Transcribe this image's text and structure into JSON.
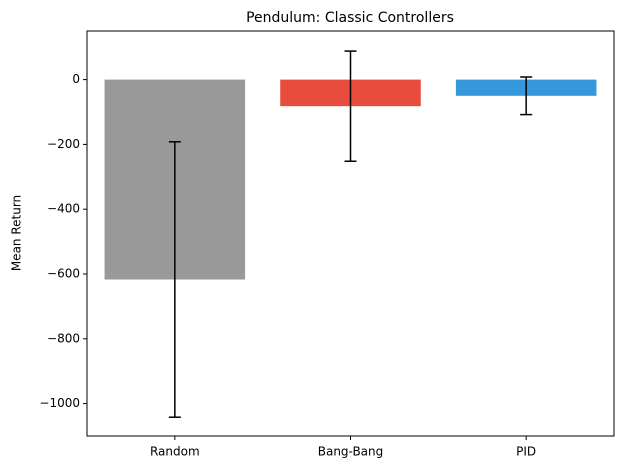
{
  "chart_data": {
    "type": "bar",
    "title": "Pendulum: Classic Controllers",
    "y_label": "Mean Return",
    "categories": [
      "Random",
      "Bang-Bang",
      "PID"
    ],
    "values": [
      -617,
      -82,
      -50
    ],
    "errors": [
      425,
      170,
      58
    ],
    "colors": [
      "#999999",
      "#e74c3c",
      "#3498db"
    ],
    "ylim": [
      -1100,
      150
    ],
    "yticks": [
      {
        "value": -1000,
        "label": "−1000"
      },
      {
        "value": -800,
        "label": "−800"
      },
      {
        "value": -600,
        "label": "−600"
      },
      {
        "value": -400,
        "label": "−400"
      },
      {
        "value": -200,
        "label": "−200"
      },
      0
    ],
    "grid": false
  }
}
